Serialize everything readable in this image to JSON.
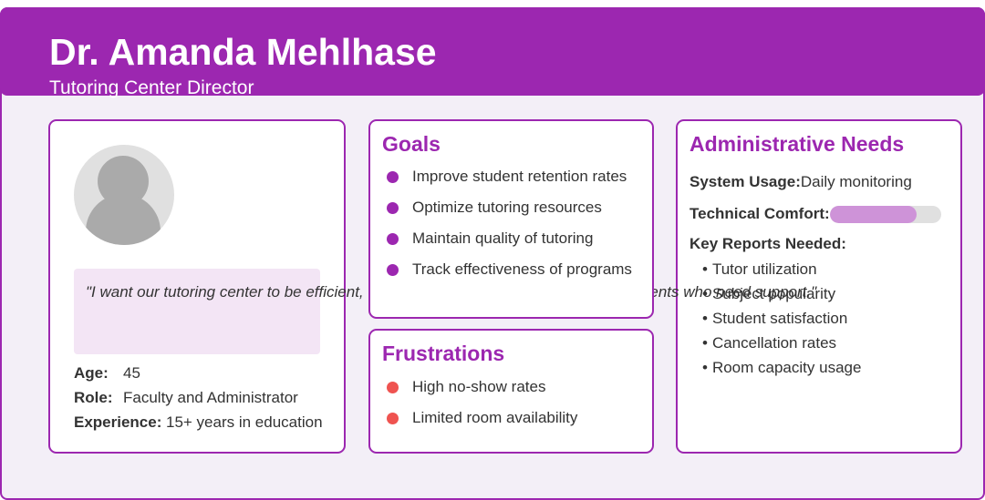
{
  "persona": {
    "name": "Dr. Amanda Mehlhase",
    "title": "Tutoring Center Director"
  },
  "profile": {
    "quote": "\"I want our tutoring center to be efficient, well-organized, and accessible to all students who need support.\"",
    "age_label": "Age:",
    "age": "45",
    "role_label": "Role:",
    "role": "Faculty and Administrator",
    "experience_label": "Experience:",
    "experience": "15+ years in education"
  },
  "goals": {
    "title": "Goals",
    "items": [
      "Improve student retention rates",
      "Optimize tutoring resources",
      "Maintain quality of tutoring",
      "Track effectiveness of programs"
    ]
  },
  "frustrations": {
    "title": "Frustrations",
    "items": [
      "High no-show rates",
      "Limited room availability"
    ]
  },
  "admin": {
    "title": "Administrative Needs",
    "system_usage_label": "System Usage:",
    "system_usage": "Daily monitoring",
    "tech_comfort_label": "Technical Comfort:",
    "tech_comfort_fraction": 0.78,
    "reports_label": "Key Reports Needed:",
    "reports": [
      "Tutor utilization",
      "Subject popularity",
      "Student satisfaction",
      "Cancellation rates",
      "Room capacity usage"
    ]
  },
  "colors": {
    "primary": "#9c27b0",
    "light": "#f3e5f5",
    "bar": "#ce93d8",
    "frustration": "#ef5350"
  }
}
